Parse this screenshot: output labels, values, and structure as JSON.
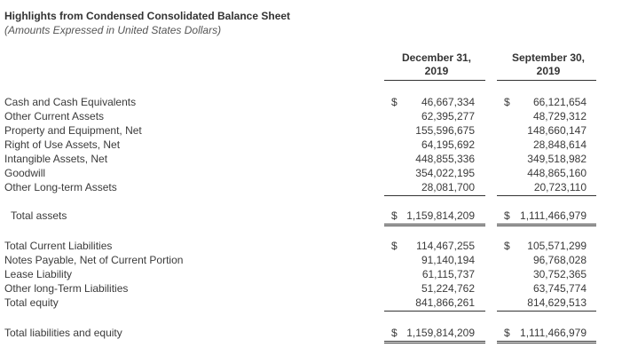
{
  "title": "Highlights from Condensed Consolidated Balance Sheet",
  "subtitle": "(Amounts Expressed in United States Dollars)",
  "columns": [
    {
      "line1": "December 31,",
      "line2": "2019"
    },
    {
      "line1": "September 30,",
      "line2": "2019"
    }
  ],
  "currency_symbol": "$",
  "assets": [
    {
      "label": "Cash and Cash Equivalents",
      "dec": "46,667,334",
      "sep": "66,121,654"
    },
    {
      "label": "Other Current Assets",
      "dec": "62,395,277",
      "sep": "48,729,312"
    },
    {
      "label": "Property and Equipment, Net",
      "dec": "155,596,675",
      "sep": "148,660,147"
    },
    {
      "label": "Right of Use Assets, Net",
      "dec": "64,195,692",
      "sep": "28,848,614"
    },
    {
      "label": "Intangible Assets, Net",
      "dec": "448,855,336",
      "sep": "349,518,982"
    },
    {
      "label": "Goodwill",
      "dec": "354,022,195",
      "sep": "448,865,160"
    },
    {
      "label": "Other Long-term Assets",
      "dec": "28,081,700",
      "sep": "20,723,110"
    }
  ],
  "total_assets": {
    "label": "Total assets",
    "dec": "1,159,814,209",
    "sep": "1,111,466,979"
  },
  "liabilities": [
    {
      "label": "Total Current Liabilities",
      "dec": "114,467,255",
      "sep": "105,571,299"
    },
    {
      "label": "Notes Payable, Net of Current Portion",
      "dec": "91,140,194",
      "sep": "96,768,028"
    },
    {
      "label": "Lease Liability",
      "dec": "61,115,737",
      "sep": "30,752,365"
    },
    {
      "label": "Other long-Term Liabilities",
      "dec": "51,224,762",
      "sep": "63,745,774"
    },
    {
      "label": "Total equity",
      "dec": "841,866,261",
      "sep": "814,629,513"
    }
  ],
  "total_liabilities_equity": {
    "label": "Total liabilities and equity",
    "dec": "1,159,814,209",
    "sep": "1,111,466,979"
  }
}
